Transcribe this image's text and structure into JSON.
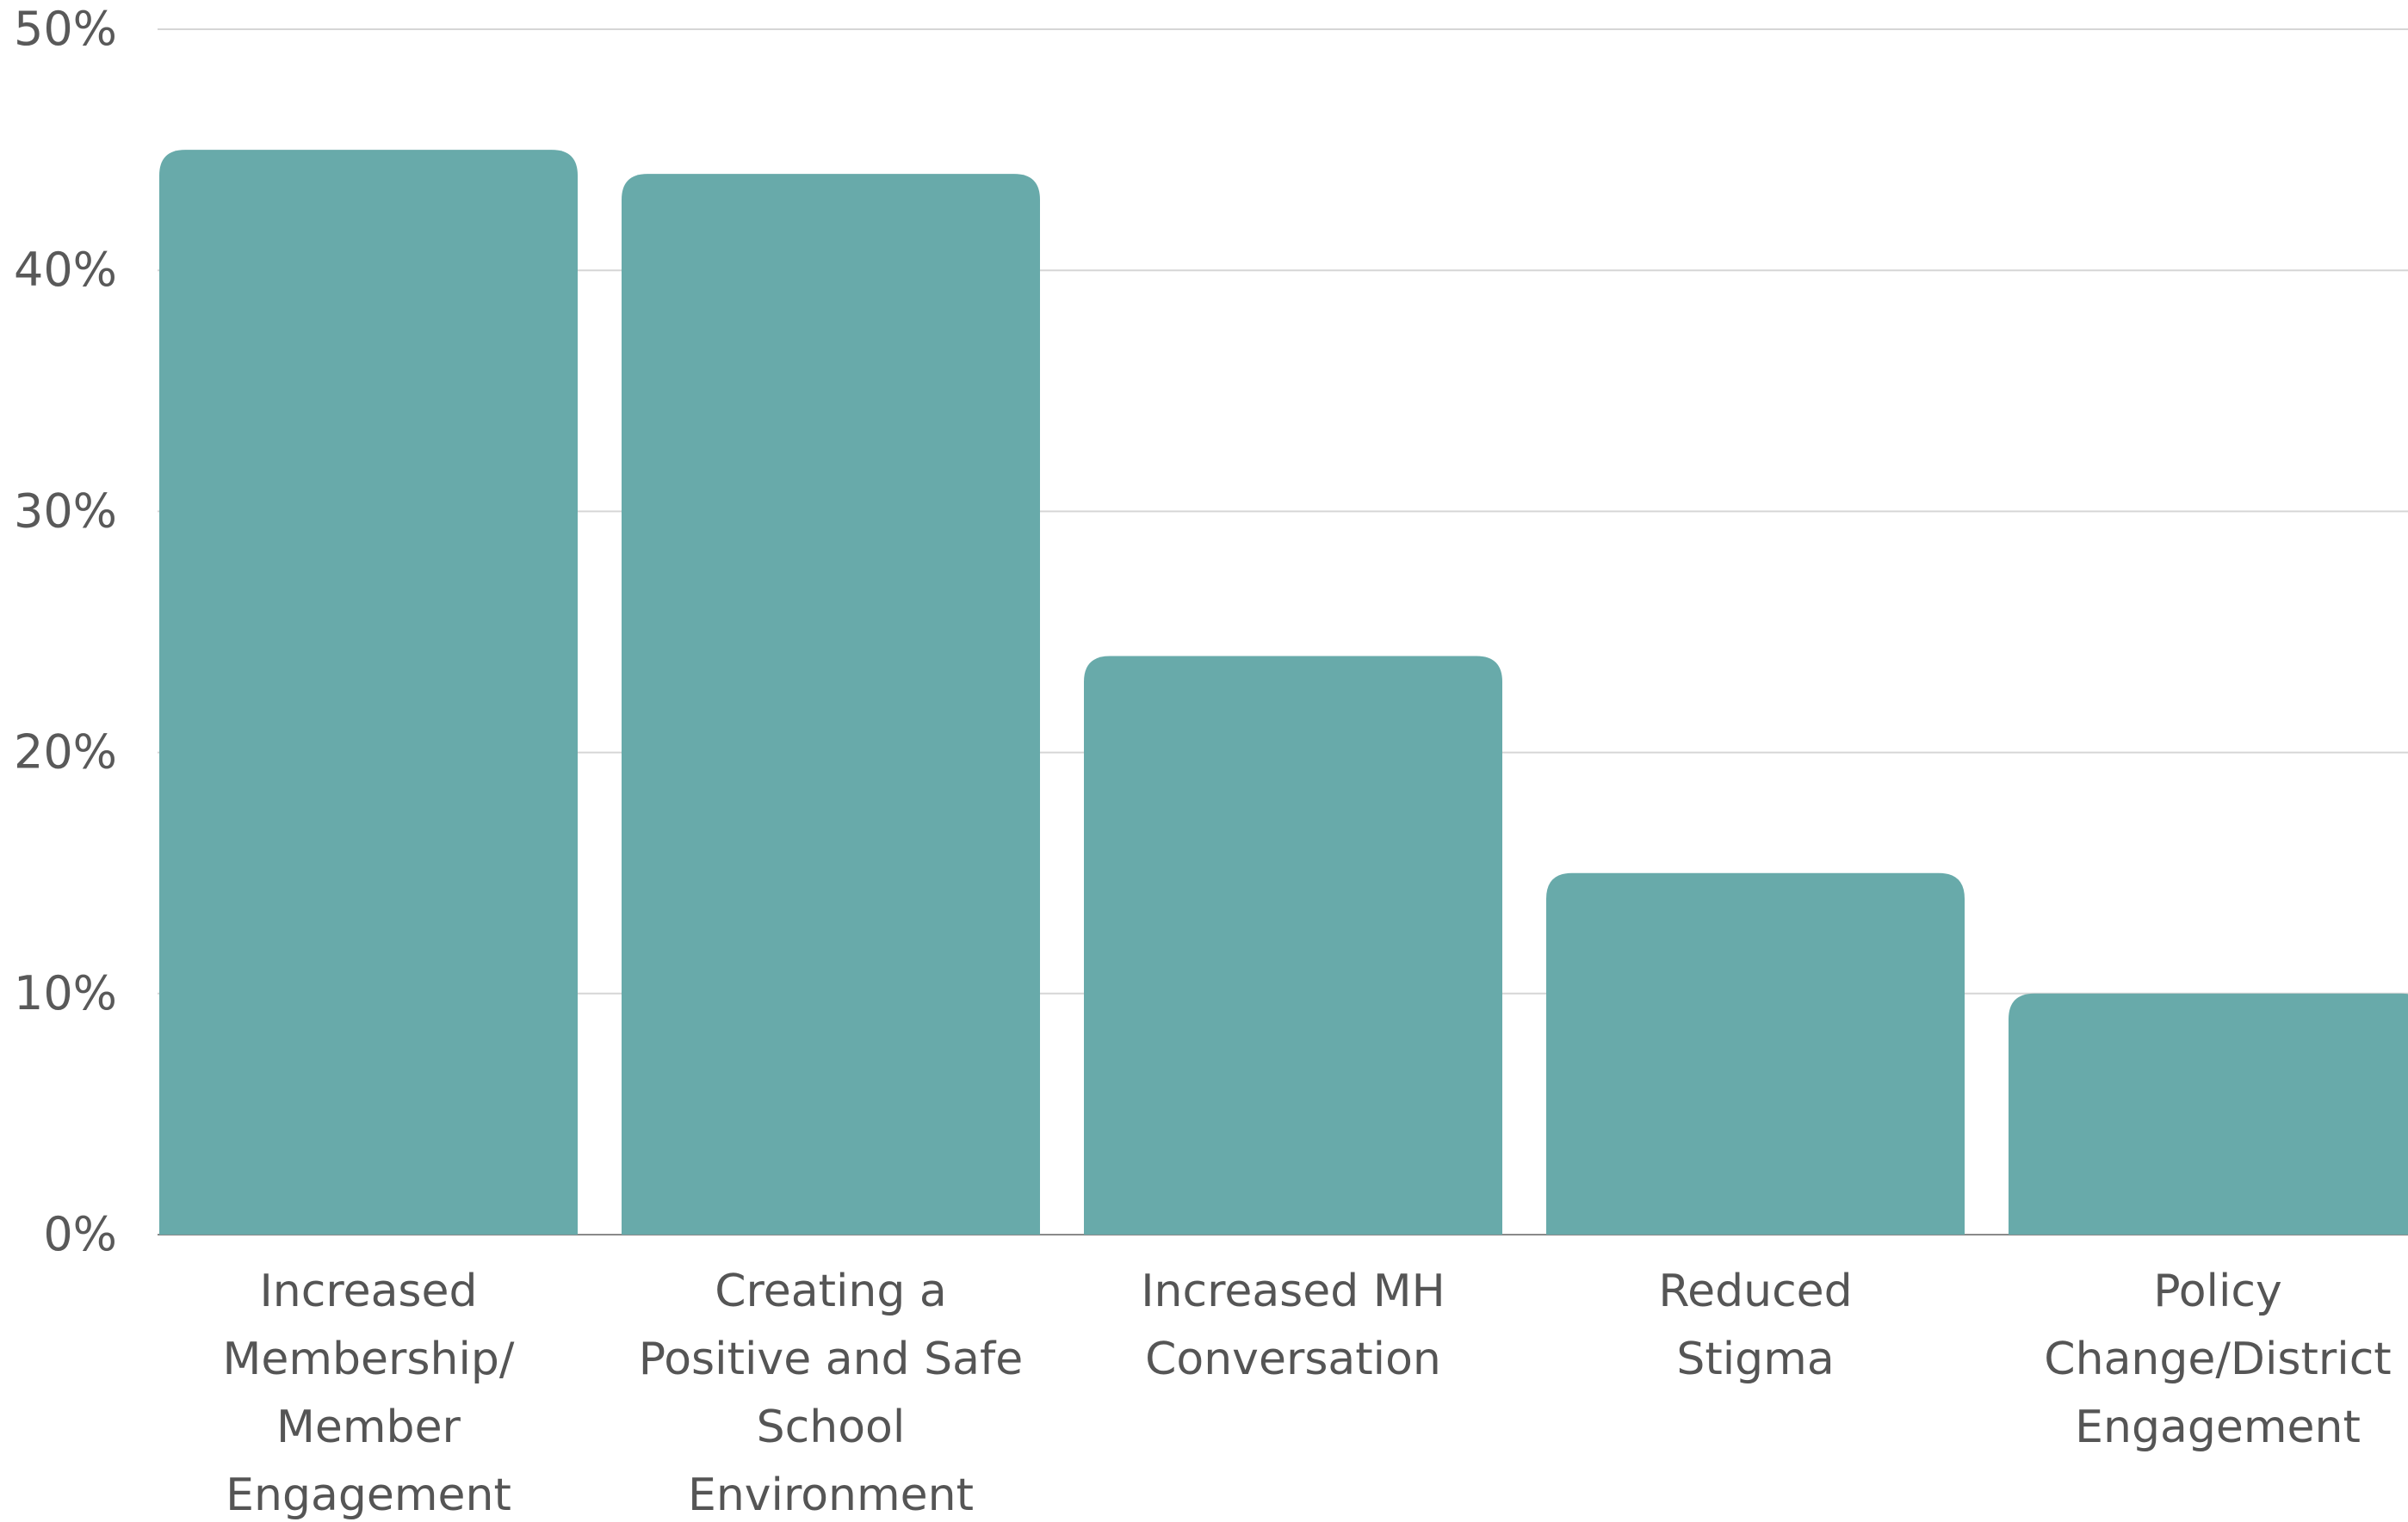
{
  "chart_data": {
    "type": "bar",
    "title": "",
    "xlabel": "",
    "ylabel": "",
    "categories": [
      [
        "Increased",
        "Membership/",
        "Member",
        "Engagement"
      ],
      [
        "Creating a",
        "Positive and  Safe",
        "School",
        "Environment"
      ],
      [
        "Increased MH",
        "Conversation"
      ],
      [
        "Reduced",
        "Stigma"
      ],
      [
        "Policy",
        "Change/District",
        "Engagement"
      ]
    ],
    "values": [
      45,
      44,
      24,
      15,
      10
    ],
    "ylim": [
      0,
      50
    ],
    "yticks": [
      0,
      10,
      20,
      30,
      40,
      50
    ],
    "ytick_labels": [
      "0%",
      "10%",
      "20%",
      "30%",
      "40%",
      "50%"
    ],
    "grid": true,
    "bar_color": "#68aaaa",
    "gridline_color": "#d6d6d6"
  }
}
